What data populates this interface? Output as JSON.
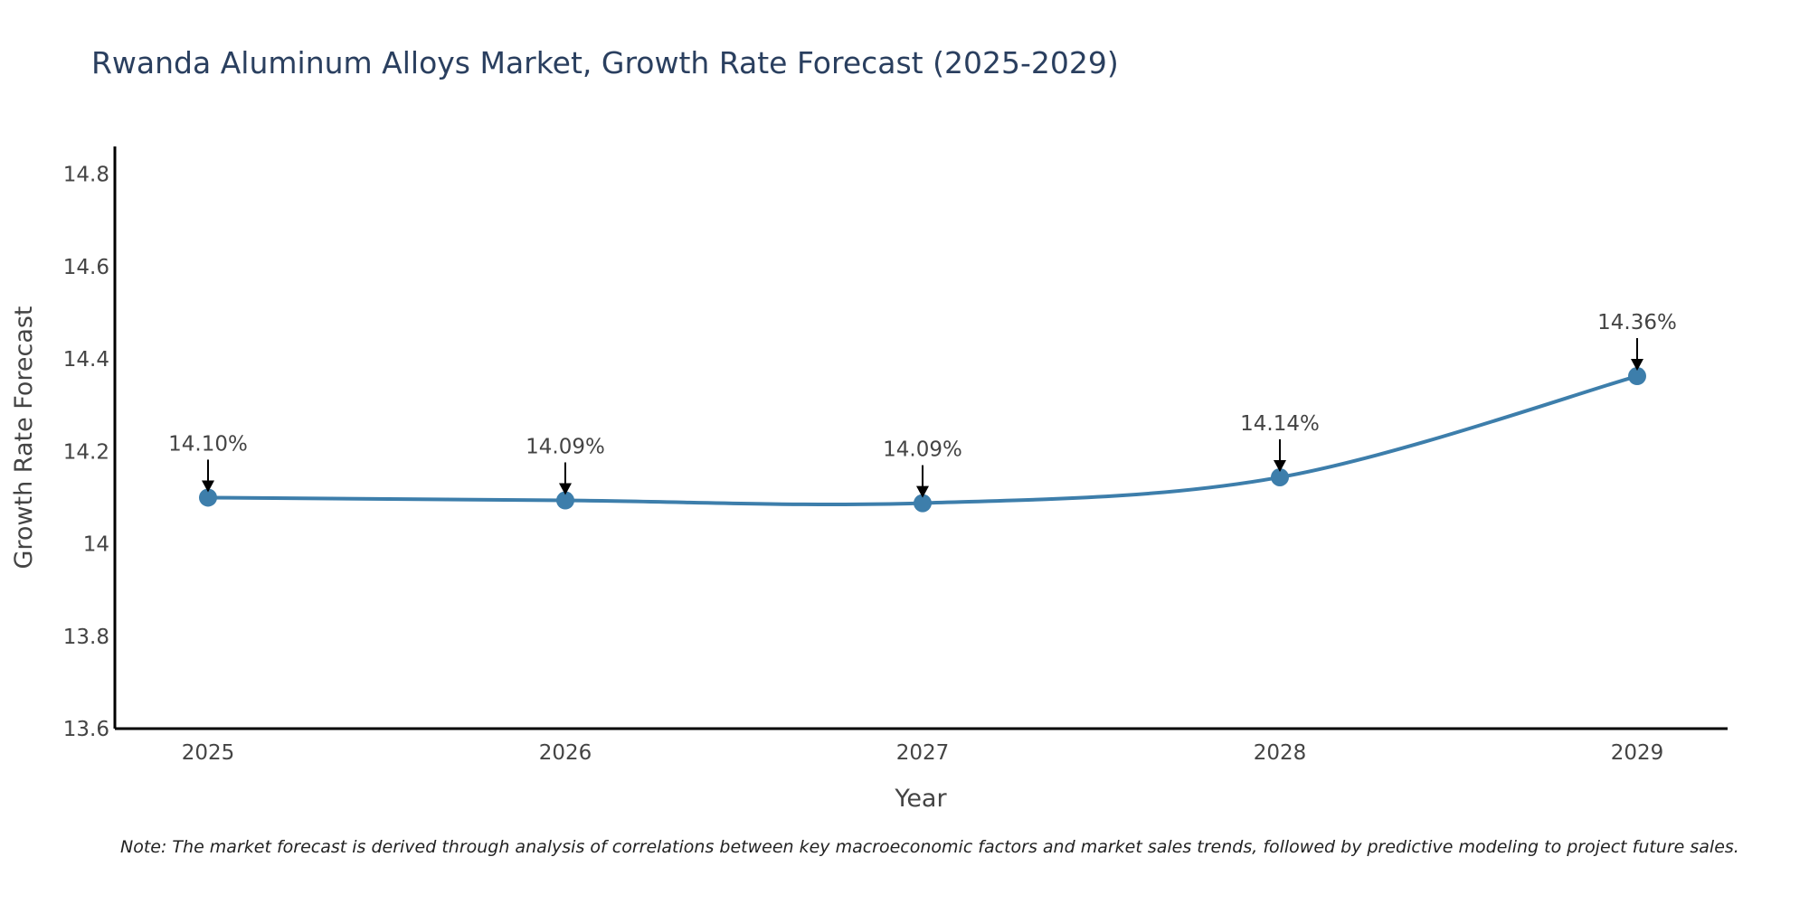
{
  "chart_data": {
    "type": "line",
    "title": "Rwanda Aluminum Alloys Market, Growth Rate Forecast (2025-2029)",
    "xlabel": "Year",
    "ylabel": "Growth Rate Forecast",
    "categories": [
      "2025",
      "2026",
      "2027",
      "2028",
      "2029"
    ],
    "series": [
      {
        "name": "Growth Rate Forecast",
        "values": [
          14.1,
          14.094,
          14.088,
          14.144,
          14.363
        ]
      }
    ],
    "data_labels": [
      "14.10%",
      "14.09%",
      "14.09%",
      "14.14%",
      "14.36%"
    ],
    "ylim": [
      13.6,
      14.86
    ],
    "yticks": [
      13.6,
      13.8,
      14,
      14.2,
      14.4,
      14.6,
      14.8
    ],
    "ytick_labels": [
      "13.6",
      "13.8",
      "14",
      "14.2",
      "14.4",
      "14.6",
      "14.8"
    ],
    "grid": false,
    "line_color": "#3d7eab",
    "marker_color": "#3d7eab",
    "note": "Note: The market forecast is derived through analysis of correlations between key macroeconomic factors and market sales trends, followed by predictive modeling to project future sales."
  }
}
